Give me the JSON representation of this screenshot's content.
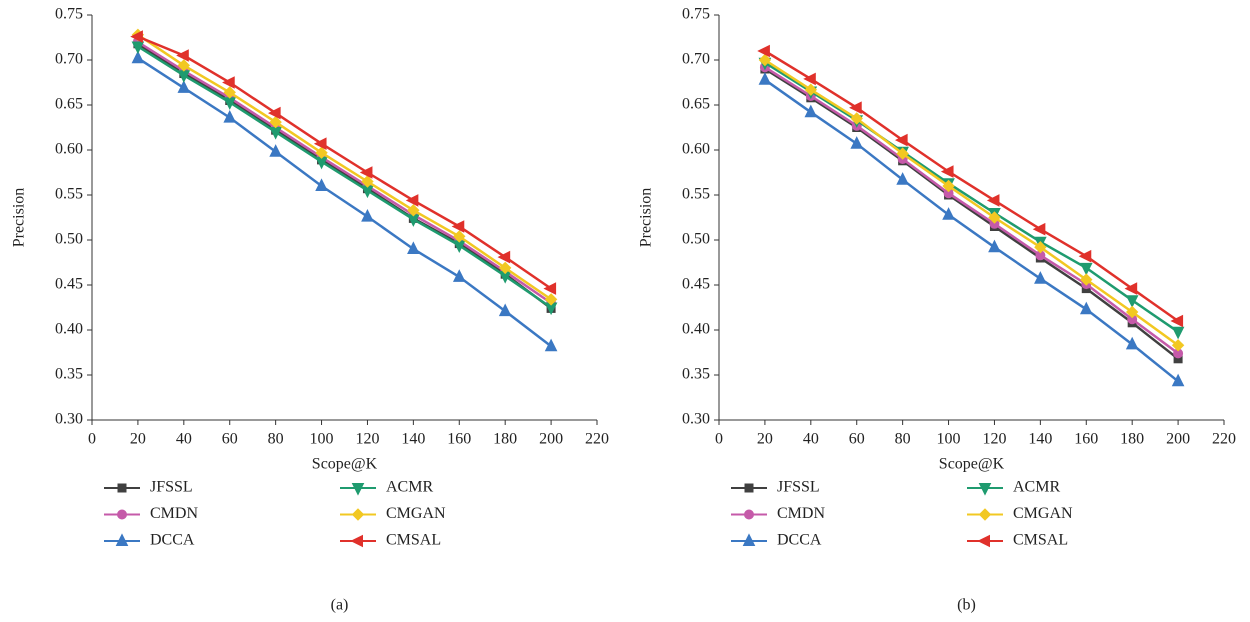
{
  "chart_data": [
    {
      "type": "line",
      "caption": "(a)",
      "x_label": "Scope@K",
      "y_label": "Precision",
      "x": [
        20,
        40,
        60,
        80,
        100,
        120,
        140,
        160,
        180,
        200
      ],
      "xlim": [
        0,
        220
      ],
      "ylim": [
        0.3,
        0.75
      ],
      "xticks": [
        0,
        20,
        40,
        60,
        80,
        100,
        120,
        140,
        160,
        180,
        200,
        220
      ],
      "yticks": [
        {
          "value": 0.3,
          "label": "0.30"
        },
        0.35,
        {
          "value": 0.4,
          "label": "0.40"
        },
        0.45,
        {
          "value": 0.5,
          "label": "0.50"
        },
        0.55,
        {
          "value": 0.6,
          "label": "0.60"
        },
        0.65,
        {
          "value": 0.7,
          "label": "0.70"
        },
        0.75
      ],
      "legend": "bottom",
      "series": [
        {
          "name": "JFSSL",
          "color": "#404040",
          "marker": "square",
          "values": [
            0.718,
            0.685,
            0.655,
            0.622,
            0.589,
            0.557,
            0.524,
            0.496,
            0.462,
            0.424
          ]
        },
        {
          "name": "CMDN",
          "color": "#c55aa9",
          "marker": "circle",
          "values": [
            0.72,
            0.688,
            0.658,
            0.625,
            0.592,
            0.56,
            0.528,
            0.499,
            0.465,
            0.43
          ]
        },
        {
          "name": "DCCA",
          "color": "#3b78c3",
          "marker": "triangle-up",
          "values": [
            0.702,
            0.669,
            0.636,
            0.598,
            0.56,
            0.526,
            0.49,
            0.459,
            0.421,
            0.382
          ]
        },
        {
          "name": "ACMR",
          "color": "#1f9b6f",
          "marker": "triangle-down",
          "values": [
            0.715,
            0.683,
            0.653,
            0.62,
            0.587,
            0.555,
            0.523,
            0.494,
            0.46,
            0.425
          ]
        },
        {
          "name": "CMGAN",
          "color": "#f2c822",
          "marker": "diamond",
          "values": [
            0.728,
            0.694,
            0.664,
            0.631,
            0.597,
            0.565,
            0.533,
            0.504,
            0.469,
            0.434
          ]
        },
        {
          "name": "CMSAL",
          "color": "#e0312b",
          "marker": "triangle-left",
          "values": [
            0.726,
            0.705,
            0.675,
            0.641,
            0.607,
            0.575,
            0.544,
            0.515,
            0.481,
            0.446
          ]
        }
      ]
    },
    {
      "type": "line",
      "caption": "(b)",
      "x_label": "Scope@K",
      "y_label": "Precision",
      "x": [
        20,
        40,
        60,
        80,
        100,
        120,
        140,
        160,
        180,
        200
      ],
      "xlim": [
        0,
        220
      ],
      "ylim": [
        0.3,
        0.75
      ],
      "xticks": [
        0,
        20,
        40,
        60,
        80,
        100,
        120,
        140,
        160,
        180,
        200,
        220
      ],
      "yticks": [
        {
          "value": 0.3,
          "label": "0.30"
        },
        0.35,
        {
          "value": 0.4,
          "label": "0.40"
        },
        0.45,
        {
          "value": 0.5,
          "label": "0.50"
        },
        0.55,
        {
          "value": 0.6,
          "label": "0.60"
        },
        0.65,
        {
          "value": 0.7,
          "label": "0.70"
        },
        0.75
      ],
      "legend": "bottom",
      "series": [
        {
          "name": "JFSSL",
          "color": "#404040",
          "marker": "square",
          "values": [
            0.69,
            0.658,
            0.625,
            0.588,
            0.55,
            0.515,
            0.48,
            0.446,
            0.408,
            0.368
          ]
        },
        {
          "name": "CMDN",
          "color": "#c55aa9",
          "marker": "circle",
          "values": [
            0.692,
            0.66,
            0.627,
            0.59,
            0.552,
            0.518,
            0.483,
            0.451,
            0.412,
            0.374
          ]
        },
        {
          "name": "DCCA",
          "color": "#3b78c3",
          "marker": "triangle-up",
          "values": [
            0.678,
            0.642,
            0.607,
            0.567,
            0.528,
            0.492,
            0.457,
            0.423,
            0.384,
            0.343
          ]
        },
        {
          "name": "ACMR",
          "color": "#1f9b6f",
          "marker": "triangle-down",
          "values": [
            0.697,
            0.665,
            0.633,
            0.598,
            0.563,
            0.53,
            0.498,
            0.469,
            0.433,
            0.398
          ]
        },
        {
          "name": "CMGAN",
          "color": "#f2c822",
          "marker": "diamond",
          "values": [
            0.7,
            0.667,
            0.635,
            0.596,
            0.56,
            0.525,
            0.492,
            0.456,
            0.42,
            0.383
          ]
        },
        {
          "name": "CMSAL",
          "color": "#e0312b",
          "marker": "triangle-left",
          "values": [
            0.71,
            0.679,
            0.647,
            0.611,
            0.576,
            0.544,
            0.512,
            0.482,
            0.446,
            0.41
          ]
        }
      ]
    }
  ]
}
